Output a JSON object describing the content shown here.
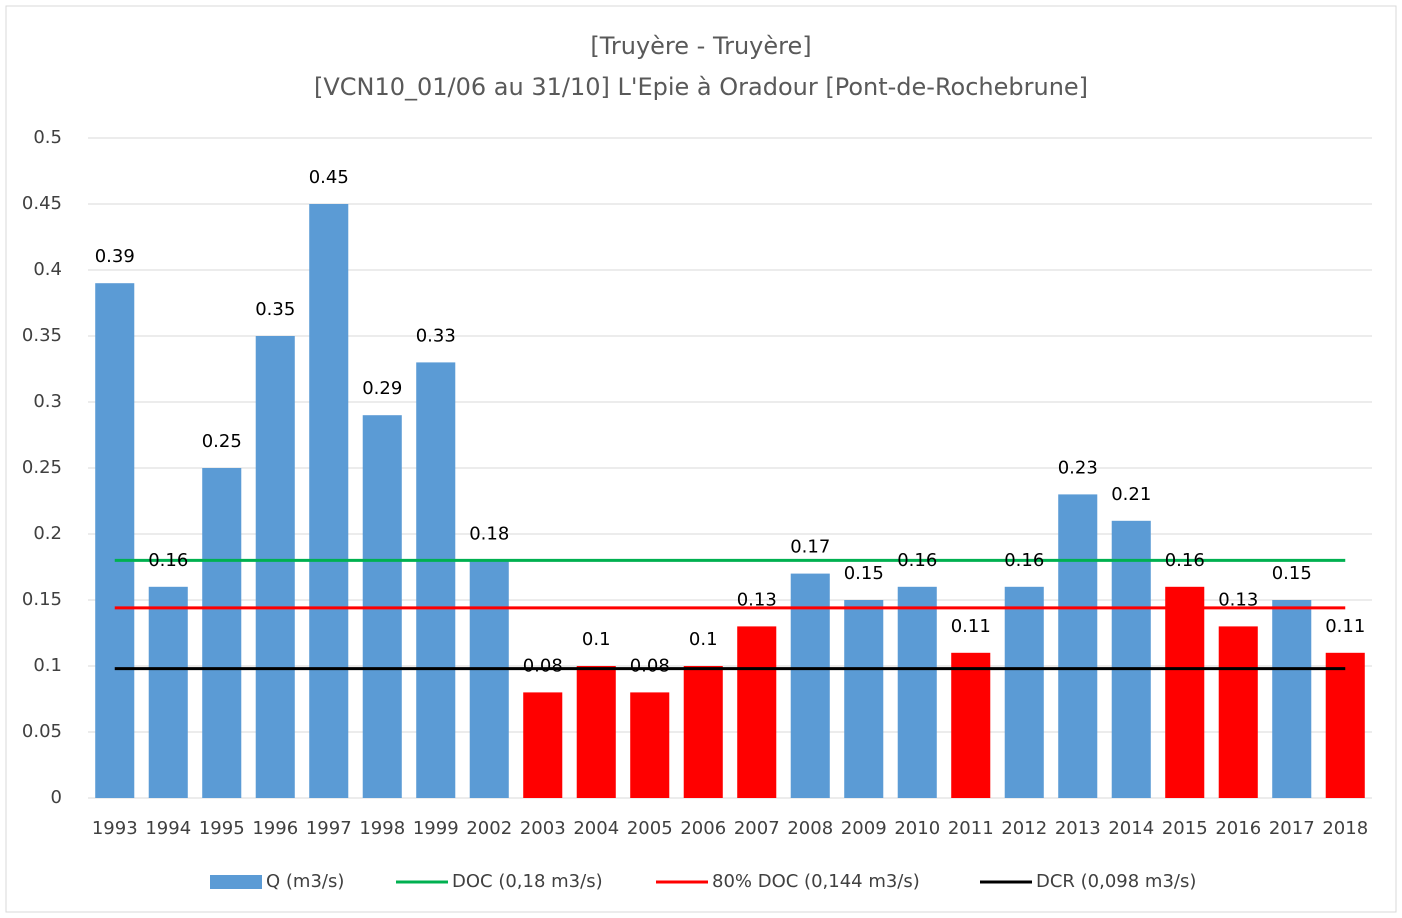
{
  "chart_data": {
    "type": "bar",
    "title": "[Truyère - Truyère]",
    "subtitle": "[VCN10_01/06 au 31/10] L'Epie à Oradour [Pont-de-Rochebrune]",
    "categories": [
      "1993",
      "1994",
      "1995",
      "1996",
      "1997",
      "1998",
      "1999",
      "2002",
      "2003",
      "2004",
      "2005",
      "2006",
      "2007",
      "2008",
      "2009",
      "2010",
      "2011",
      "2012",
      "2013",
      "2014",
      "2015",
      "2016",
      "2017",
      "2018"
    ],
    "series": [
      {
        "name": "Q (m3/s)",
        "type": "bar",
        "color": "#5b9bd5",
        "colors": [
          "#5b9bd5",
          "#5b9bd5",
          "#5b9bd5",
          "#5b9bd5",
          "#5b9bd5",
          "#5b9bd5",
          "#5b9bd5",
          "#5b9bd5",
          "#ff0000",
          "#ff0000",
          "#ff0000",
          "#ff0000",
          "#ff0000",
          "#5b9bd5",
          "#5b9bd5",
          "#5b9bd5",
          "#ff0000",
          "#5b9bd5",
          "#5b9bd5",
          "#5b9bd5",
          "#ff0000",
          "#ff0000",
          "#5b9bd5",
          "#ff0000"
        ],
        "values": [
          0.39,
          0.16,
          0.25,
          0.35,
          0.45,
          0.29,
          0.33,
          0.18,
          0.08,
          0.1,
          0.08,
          0.1,
          0.13,
          0.17,
          0.15,
          0.16,
          0.11,
          0.16,
          0.23,
          0.21,
          0.16,
          0.13,
          0.15,
          0.11
        ]
      },
      {
        "name": "DOC (0,18 m3/s)",
        "type": "line",
        "color": "#00b050",
        "values": [
          0.18,
          0.18,
          0.18,
          0.18,
          0.18,
          0.18,
          0.18,
          0.18,
          0.18,
          0.18,
          0.18,
          0.18,
          0.18,
          0.18,
          0.18,
          0.18,
          0.18,
          0.18,
          0.18,
          0.18,
          0.18,
          0.18,
          0.18,
          0.18
        ]
      },
      {
        "name": "80% DOC (0,144 m3/s)",
        "type": "line",
        "color": "#ff0000",
        "values": [
          0.144,
          0.144,
          0.144,
          0.144,
          0.144,
          0.144,
          0.144,
          0.144,
          0.144,
          0.144,
          0.144,
          0.144,
          0.144,
          0.144,
          0.144,
          0.144,
          0.144,
          0.144,
          0.144,
          0.144,
          0.144,
          0.144,
          0.144,
          0.144
        ]
      },
      {
        "name": "DCR (0,098 m3/s)",
        "type": "line",
        "color": "#000000",
        "values": [
          0.098,
          0.098,
          0.098,
          0.098,
          0.098,
          0.098,
          0.098,
          0.098,
          0.098,
          0.098,
          0.098,
          0.098,
          0.098,
          0.098,
          0.098,
          0.098,
          0.098,
          0.098,
          0.098,
          0.098,
          0.098,
          0.098,
          0.098,
          0.098
        ]
      }
    ],
    "ylim": [
      0,
      0.5
    ],
    "yticks": [
      0,
      0.05,
      0.1,
      0.15,
      0.2,
      0.25,
      0.3,
      0.35,
      0.4,
      0.45,
      0.5
    ],
    "grid": true,
    "legend": "bottom"
  }
}
